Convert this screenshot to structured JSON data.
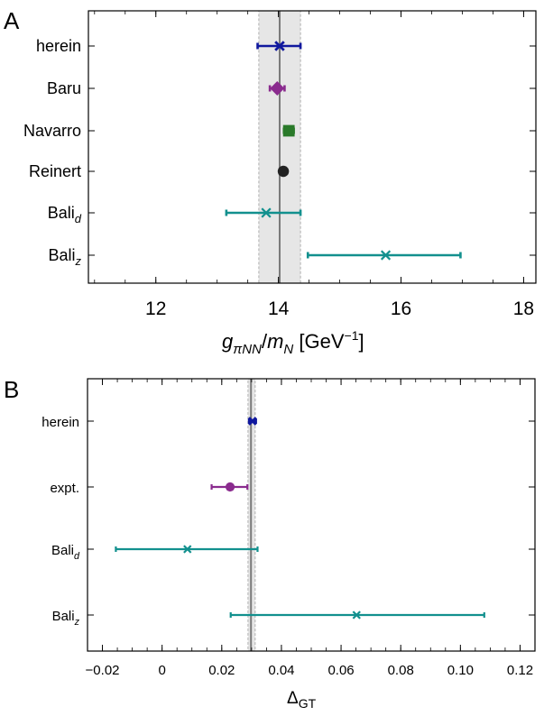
{
  "chart_data": [
    {
      "panel": "A",
      "type": "scatter",
      "error_bars": true,
      "xlabel": "gπNN/mN [GeV−1]",
      "xlabel_parts": {
        "g": "g",
        "g_sub": "πNN",
        "slash": "/",
        "m": "m",
        "m_sub": "N",
        "unit_open": " [GeV",
        "unit_sup": "−1",
        "unit_close": "]"
      },
      "xlim": [
        10.9,
        18.2
      ],
      "xticks": [
        "12",
        "14",
        "16",
        "18"
      ],
      "band": {
        "center": 14.02,
        "low": 13.68,
        "high": 14.36,
        "color": "#e6e6e6"
      },
      "grid": false,
      "rows": [
        {
          "label": "herein",
          "sub": "",
          "x": 14.02,
          "err_low": 0.36,
          "err_high": 0.34,
          "marker": "x-star",
          "color": "#10189e"
        },
        {
          "label": "Baru",
          "sub": "",
          "x": 13.98,
          "err_low": 0.12,
          "err_high": 0.12,
          "marker": "diamond",
          "color": "#8a2b8e"
        },
        {
          "label": "Navarro",
          "sub": "",
          "x": 14.17,
          "err_low": 0.08,
          "err_high": 0.08,
          "marker": "square",
          "color": "#2a7a2a"
        },
        {
          "label": "Reinert",
          "sub": "",
          "x": 14.08,
          "err_low": 0.06,
          "err_high": 0.06,
          "marker": "circle",
          "color": "#222222"
        },
        {
          "label": "Bali",
          "sub": "d",
          "x": 13.8,
          "err_low": 0.65,
          "err_high": 0.56,
          "marker": "x",
          "color": "#12908e"
        },
        {
          "label": "Bali",
          "sub": "z",
          "x": 15.75,
          "err_low": 1.27,
          "err_high": 1.22,
          "marker": "x",
          "color": "#12908e"
        }
      ]
    },
    {
      "panel": "B",
      "type": "scatter",
      "error_bars": true,
      "xlabel": "ΔGT",
      "xlabel_parts": {
        "main": "Δ",
        "sub": "GT"
      },
      "xlim": [
        -0.025,
        0.125
      ],
      "xticks": [
        "−0.02",
        "0",
        "0.02",
        "0.04",
        "0.06",
        "0.08",
        "0.10",
        "0.12"
      ],
      "band": {
        "center": 0.0298,
        "low": 0.0288,
        "high": 0.0312,
        "color": "#e6e6e6"
      },
      "grid": false,
      "rows": [
        {
          "label": "herein",
          "sub": "",
          "x": 0.0303,
          "err_low": 0.0012,
          "err_high": 0.0012,
          "marker": "x-star",
          "color": "#10189e"
        },
        {
          "label": "expt.",
          "sub": "",
          "x": 0.0228,
          "err_low": 0.0062,
          "err_high": 0.0058,
          "marker": "circle",
          "color": "#8a2b8e"
        },
        {
          "label": "Bali",
          "sub": "d",
          "x": 0.0085,
          "err_low": 0.024,
          "err_high": 0.0235,
          "marker": "x",
          "color": "#12908e"
        },
        {
          "label": "Bali",
          "sub": "z",
          "x": 0.0652,
          "err_low": 0.0422,
          "err_high": 0.0428,
          "marker": "x",
          "color": "#12908e"
        }
      ]
    }
  ]
}
